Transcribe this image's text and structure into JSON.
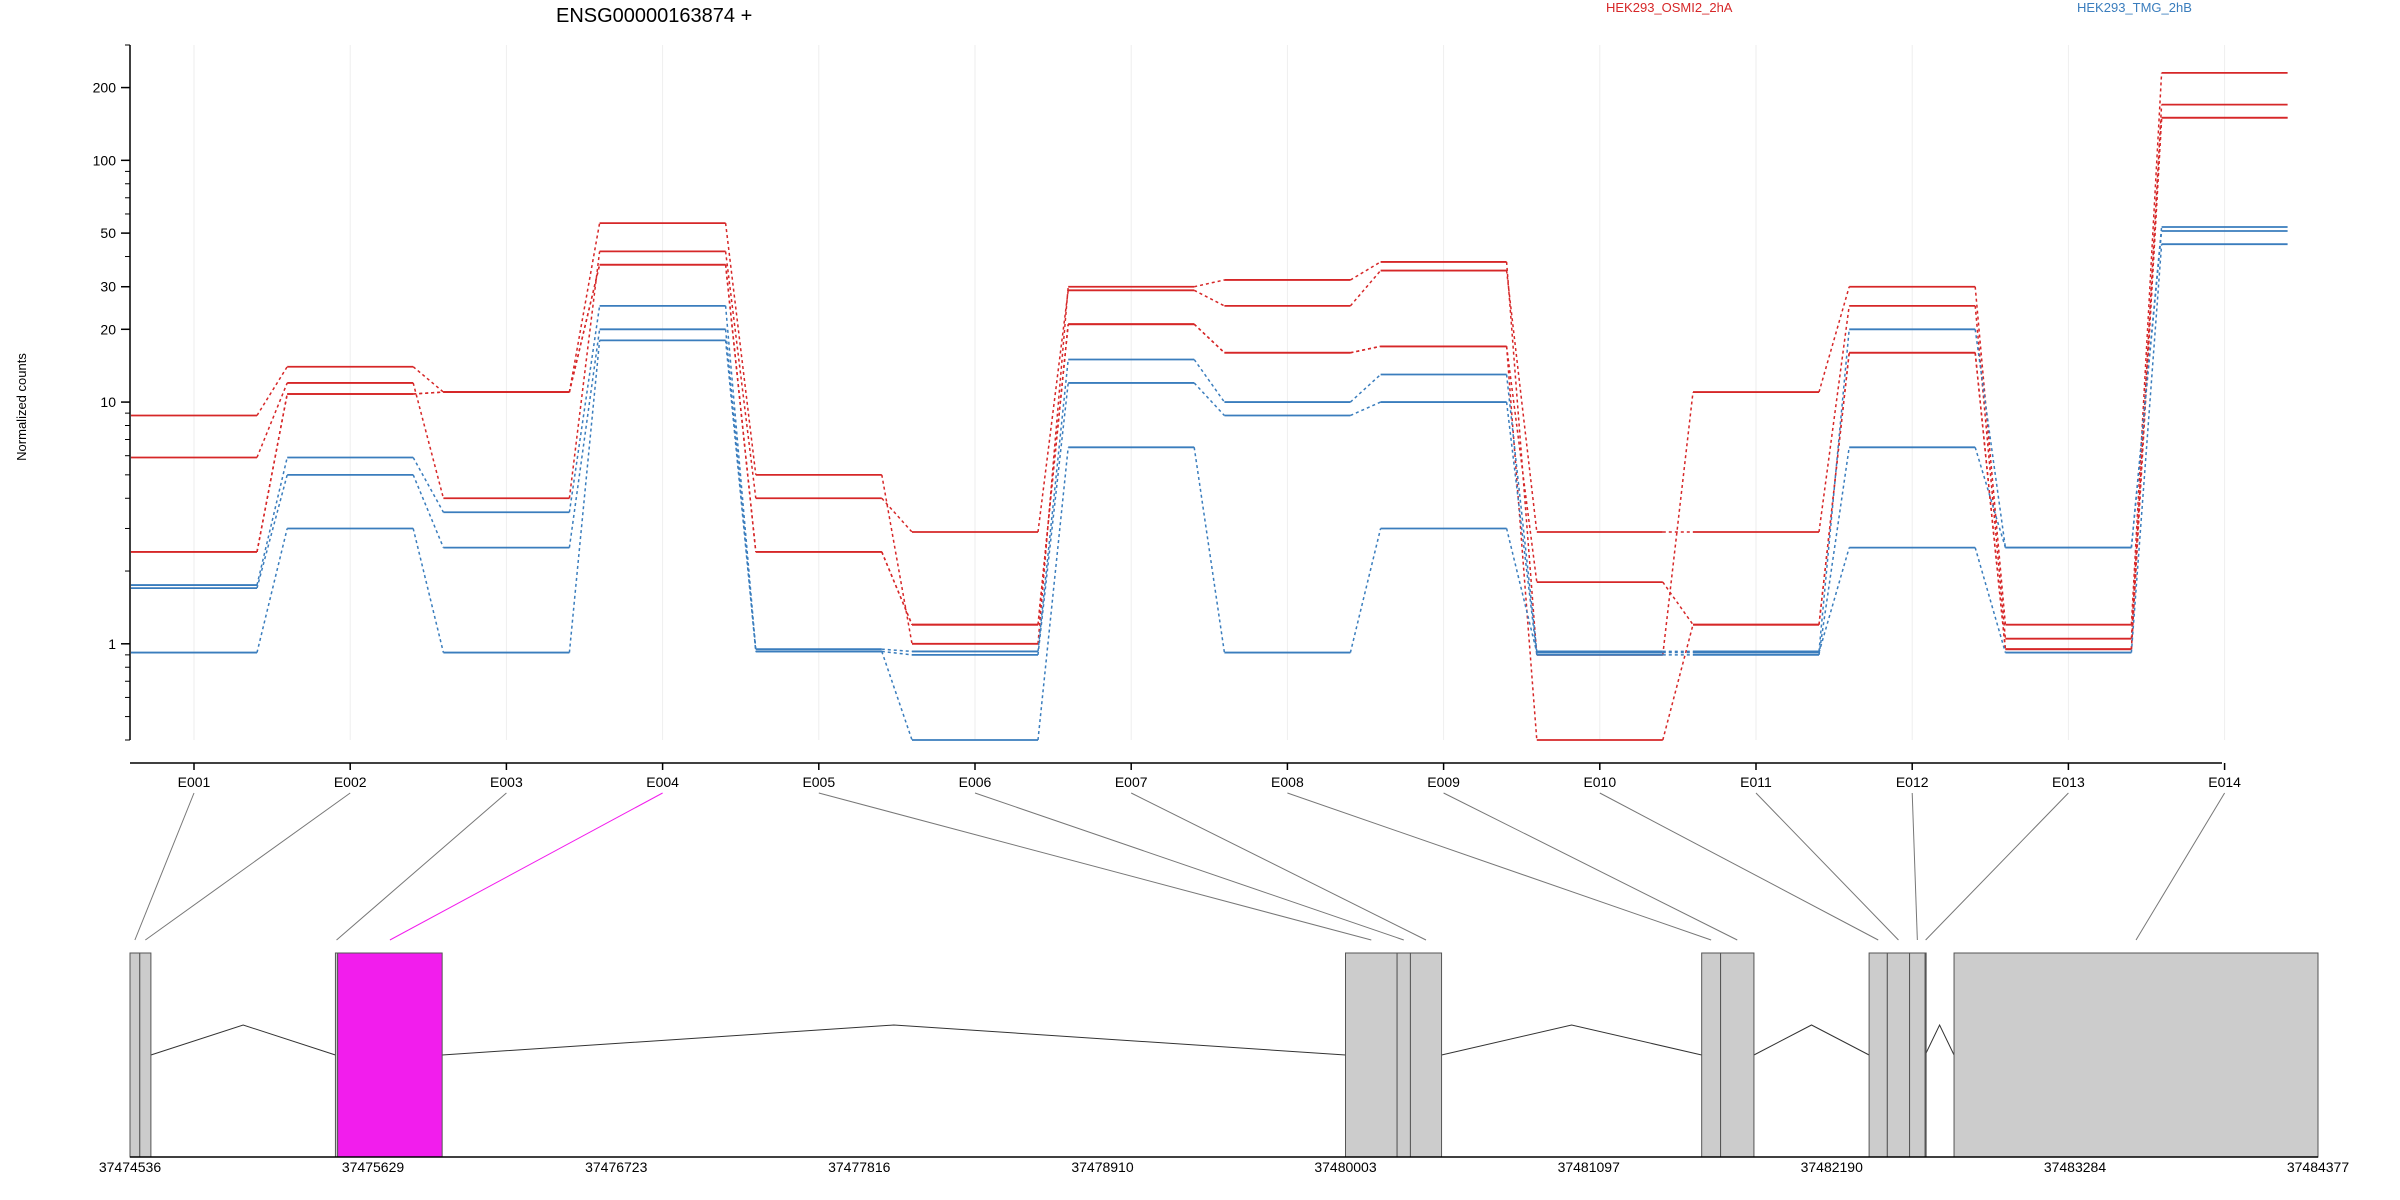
{
  "chart_data": [
    {
      "type": "line",
      "title": "ENSG00000163874 +",
      "ylabel": "Normalized counts",
      "xlabel": "",
      "yscale": "log",
      "ylim": [
        0.4,
        300
      ],
      "yticks": [
        1,
        10,
        20,
        30,
        50,
        100,
        200
      ],
      "categories": [
        "E001",
        "E002",
        "E003",
        "E004",
        "E005",
        "E006",
        "E007",
        "E008",
        "E009",
        "E010",
        "E011",
        "E012",
        "E013",
        "E014"
      ],
      "legend": [
        {
          "name": "HEK293_OSMI2_2hA",
          "color": "#d62728"
        },
        {
          "name": "HEK293_TMG_2hB",
          "color": "#3a7dbd"
        }
      ],
      "series": [
        {
          "name": "HEK293_OSMI2_2hA",
          "color": "#d62728",
          "values": [
            8.8,
            14,
            11,
            55,
            5.0,
            1.0,
            30,
            32,
            38,
            0.9,
            11,
            30,
            1.2,
            230
          ]
        },
        {
          "name": "HEK293_OSMI2_2hA",
          "color": "#d62728",
          "values": [
            5.9,
            12,
            4.0,
            42,
            4.0,
            2.9,
            29,
            25,
            35,
            2.9,
            2.9,
            25,
            1.05,
            170
          ]
        },
        {
          "name": "HEK293_OSMI2_2hA",
          "color": "#d62728",
          "values": [
            2.4,
            10.8,
            11,
            37,
            2.4,
            1.2,
            21,
            16,
            17,
            1.8,
            1.2,
            16,
            0.95,
            150
          ]
        },
        {
          "name": "HEK293_OSMI2_2hA",
          "color": "#d62728",
          "values": [
            2.4,
            10.8,
            11,
            37,
            2.4,
            1.2,
            21,
            16,
            17,
            0.4,
            1.2,
            16,
            0.95,
            150
          ]
        },
        {
          "name": "HEK293_TMG_2hB",
          "color": "#3a7dbd",
          "values": [
            1.75,
            5.9,
            3.5,
            25,
            0.95,
            0.93,
            15,
            10,
            13,
            0.93,
            0.93,
            20,
            2.5,
            53
          ]
        },
        {
          "name": "HEK293_TMG_2hB",
          "color": "#3a7dbd",
          "values": [
            1.7,
            5.0,
            2.5,
            20,
            0.93,
            0.9,
            12,
            8.8,
            10,
            0.9,
            0.9,
            6.5,
            2.5,
            51
          ]
        },
        {
          "name": "HEK293_TMG_2hB",
          "color": "#3a7dbd",
          "values": [
            0.92,
            3.0,
            0.92,
            18,
            0.93,
            0.4,
            6.5,
            0.92,
            3.0,
            0.92,
            0.92,
            2.5,
            0.92,
            45
          ]
        }
      ]
    },
    {
      "type": "gene-model",
      "xlim": [
        37474536,
        37484377
      ],
      "xticks": [
        37474536,
        37475629,
        37476723,
        37477816,
        37478910,
        37480003,
        37481097,
        37482190,
        37483284,
        37484377
      ],
      "exons": [
        {
          "id": "E001",
          "start": 37474536,
          "end": 37474580,
          "highlight": false
        },
        {
          "id": "E002",
          "start": 37474580,
          "end": 37474630,
          "highlight": false
        },
        {
          "id": "E003",
          "start": 37475460,
          "end": 37475470,
          "highlight": false
        },
        {
          "id": "E004",
          "start": 37475470,
          "end": 37475940,
          "highlight": true
        },
        {
          "id": "E005",
          "start": 37480003,
          "end": 37480235,
          "highlight": false
        },
        {
          "id": "E006",
          "start": 37480235,
          "end": 37480295,
          "highlight": false
        },
        {
          "id": "E007",
          "start": 37480295,
          "end": 37480435,
          "highlight": false
        },
        {
          "id": "E008",
          "start": 37481605,
          "end": 37481690,
          "highlight": false
        },
        {
          "id": "E009",
          "start": 37481690,
          "end": 37481840,
          "highlight": false
        },
        {
          "id": "E010",
          "start": 37482358,
          "end": 37482440,
          "highlight": false
        },
        {
          "id": "E011",
          "start": 37482440,
          "end": 37482540,
          "highlight": false
        },
        {
          "id": "E012",
          "start": 37482540,
          "end": 37482610,
          "highlight": false
        },
        {
          "id": "E013",
          "start": 37482610,
          "end": 37482610,
          "highlight": false
        },
        {
          "id": "E014",
          "start": 37482740,
          "end": 37484377,
          "highlight": false
        }
      ],
      "highlight_color": "#f21ded",
      "exon_color": "#cccccc"
    }
  ]
}
